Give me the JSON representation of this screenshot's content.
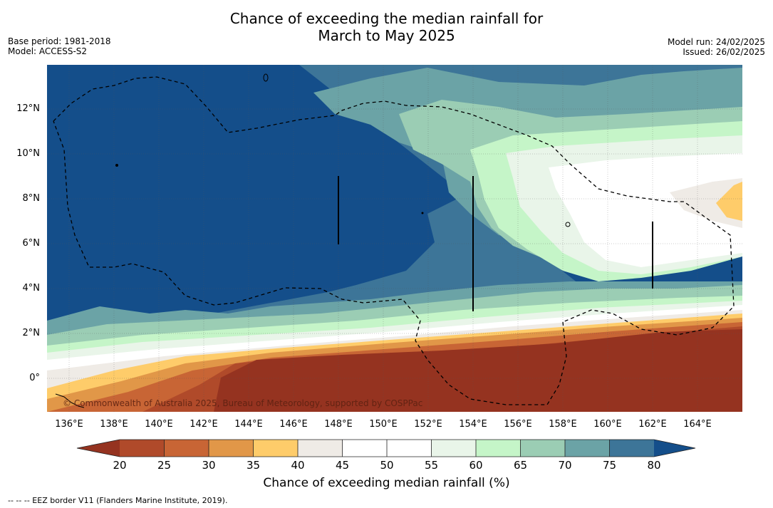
{
  "title_line1": "Chance of exceeding the median rainfall for",
  "title_line2": "March to May 2025",
  "meta_left": {
    "base_period": "Base period: 1981-2018",
    "model": "Model: ACCESS-S2"
  },
  "meta_right": {
    "model_run": "Model run: 24/02/2025",
    "issued": "Issued: 26/02/2025"
  },
  "x_ticks": [
    "136°E",
    "138°E",
    "140°E",
    "142°E",
    "144°E",
    "146°E",
    "148°E",
    "150°E",
    "152°E",
    "154°E",
    "156°E",
    "158°E",
    "160°E",
    "162°E",
    "164°E"
  ],
  "y_ticks": [
    "12°N",
    "10°N",
    "8°N",
    "6°N",
    "4°N",
    "2°N",
    "0°"
  ],
  "copyright": "© Commonwealth of Australia 2025, Bureau of Meteorology, supported by COSPPac",
  "colorbar": {
    "title": "Chance of exceeding median rainfall (%)",
    "labels": [
      "20",
      "25",
      "30",
      "35",
      "40",
      "45",
      "50",
      "55",
      "60",
      "65",
      "70",
      "75",
      "80"
    ],
    "colors": [
      "#953320",
      "#b04a2a",
      "#c86535",
      "#e19748",
      "#fecc6a",
      "#efebe6",
      "#ffffff",
      "#ffffff",
      "#e9f5e9",
      "#c5f5c8",
      "#9bcdb4",
      "#6ba3a6",
      "#3d7598",
      "#144e8a"
    ]
  },
  "footer": "--  --  -- EEZ border V11 (Flanders Marine Institute, 2019)."
}
